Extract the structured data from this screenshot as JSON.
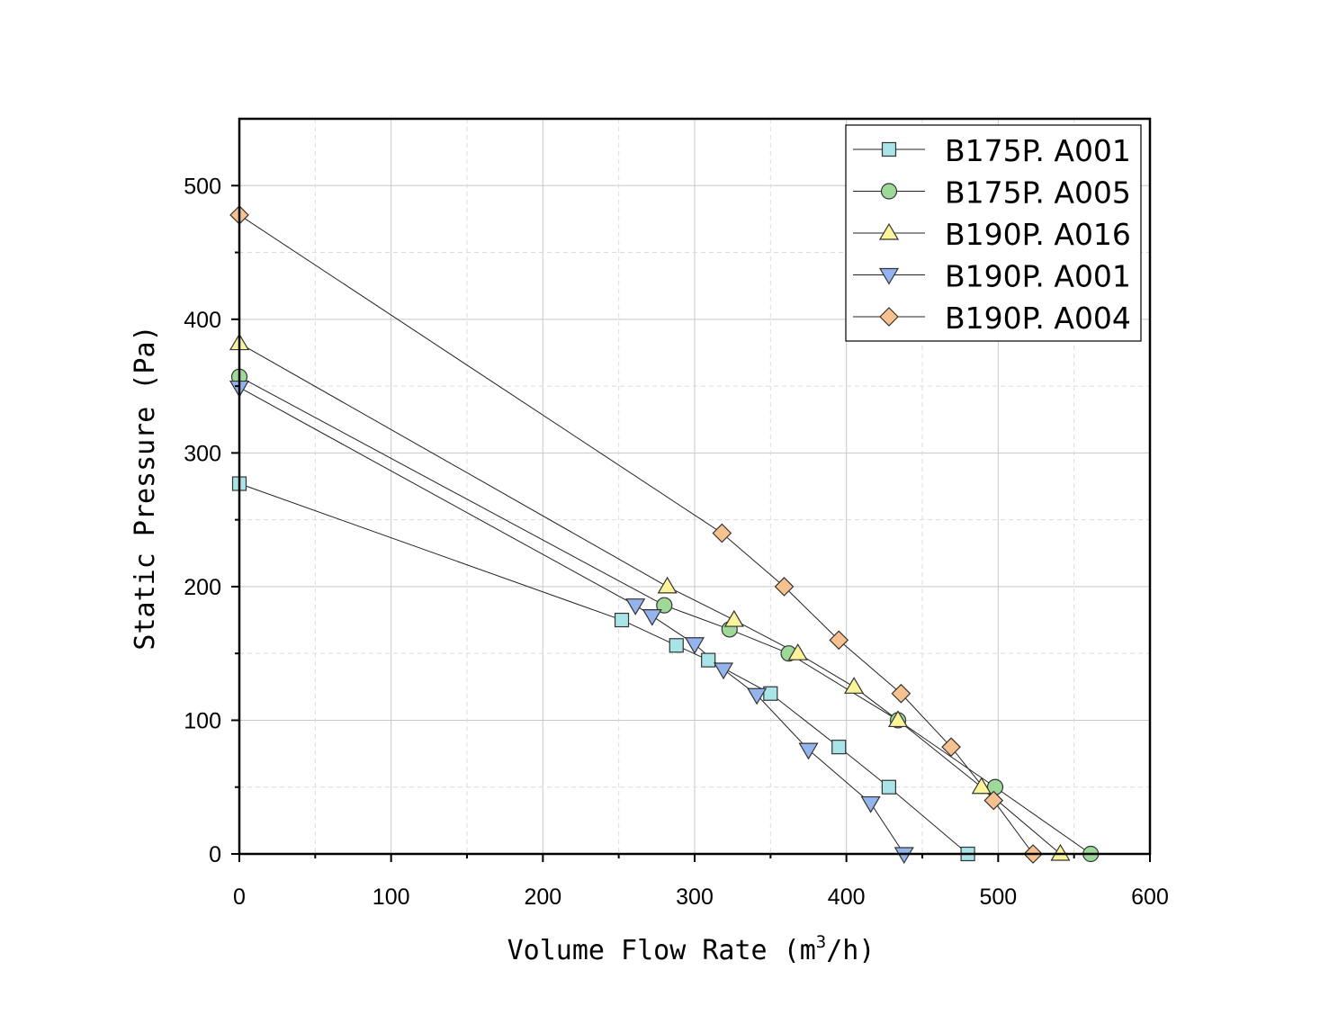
{
  "chart_data": {
    "type": "line",
    "title": "",
    "xlabel": "Volume Flow Rate (m³/h)",
    "xlabel_main": "Volume Flow Rate (m",
    "xlabel_sup": "3",
    "xlabel_tail": "/h)",
    "ylabel": "Static Pressure (Pa)",
    "xlim": [
      0,
      600
    ],
    "ylim": [
      0,
      550
    ],
    "xticks": [
      0,
      100,
      200,
      300,
      400,
      500,
      600
    ],
    "yticks": [
      0,
      100,
      200,
      300,
      400,
      500
    ],
    "grid": true,
    "legend_position": "top-right",
    "series": [
      {
        "name": "B175P. A001",
        "marker": "square",
        "color": "#a8e4e8",
        "x": [
          0,
          252,
          288,
          309,
          350,
          395,
          428,
          480
        ],
        "y": [
          277,
          175,
          156,
          145,
          120,
          80,
          50,
          0
        ]
      },
      {
        "name": "B175P. A005",
        "marker": "circle",
        "color": "#9fd99a",
        "x": [
          0,
          280,
          323,
          362,
          434,
          498,
          561
        ],
        "y": [
          357,
          186,
          168,
          150,
          100,
          50,
          0
        ]
      },
      {
        "name": "B190P. A016",
        "marker": "triangle-up",
        "color": "#fbf49a",
        "x": [
          0,
          282,
          326,
          368,
          405,
          434,
          489,
          541
        ],
        "y": [
          382,
          200,
          175,
          150,
          125,
          100,
          50,
          0
        ]
      },
      {
        "name": "B190P. A001",
        "marker": "triangle-down",
        "color": "#93b4ec",
        "x": [
          0,
          261,
          272,
          300,
          319,
          341,
          375,
          416,
          438
        ],
        "y": [
          349,
          186,
          178,
          157,
          138,
          119,
          78,
          38,
          0
        ]
      },
      {
        "name": "B190P. A004",
        "marker": "diamond",
        "color": "#f7c28f",
        "x": [
          0,
          318,
          359,
          395,
          436,
          469,
          497,
          523
        ],
        "y": [
          478,
          240,
          200,
          160,
          120,
          80,
          40,
          0
        ]
      }
    ]
  }
}
